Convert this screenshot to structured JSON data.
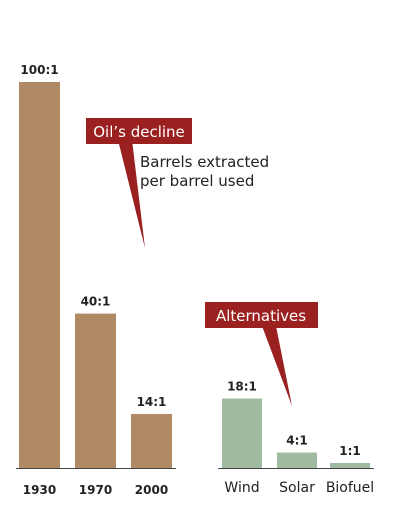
{
  "chart_data": [
    {
      "type": "bar",
      "categories": [
        "1930",
        "1970",
        "2000"
      ],
      "values": [
        100,
        40,
        14
      ],
      "value_labels": [
        "100:1",
        "40:1",
        "14:1"
      ],
      "color": "#b08a65",
      "annotation": {
        "title": "Oil’s decline",
        "subtitle_lines": [
          "Barrels extracted",
          "per barrel used"
        ]
      }
    },
    {
      "type": "bar",
      "categories": [
        "Wind",
        "Solar",
        "Biofuel"
      ],
      "values": [
        18,
        4,
        1
      ],
      "value_labels": [
        "18:1",
        "4:1",
        "1:1"
      ],
      "color": "#9fbaa0",
      "annotation": {
        "title": "Alternatives"
      }
    }
  ],
  "colors": {
    "callout": "#9b2020",
    "axis": "#444444"
  }
}
